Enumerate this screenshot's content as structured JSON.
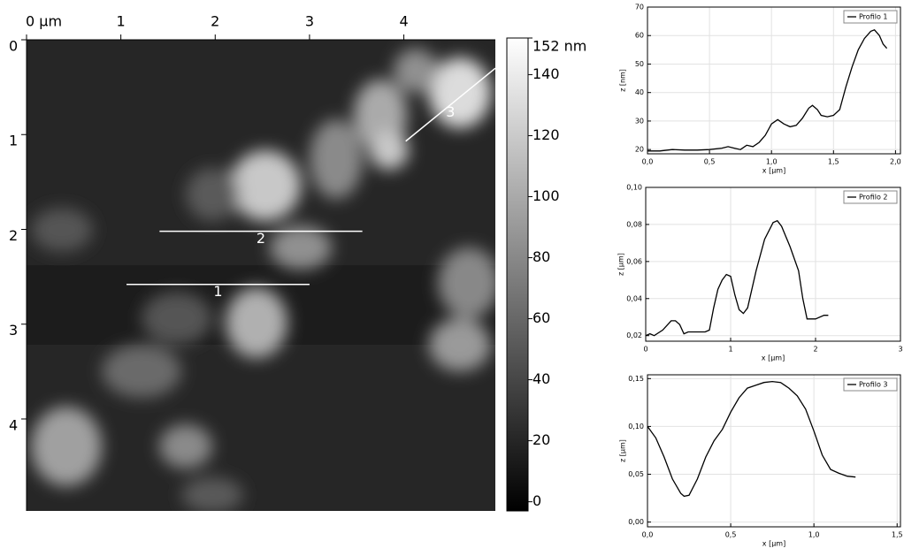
{
  "chart_data": [
    {
      "type": "image",
      "xlim": [
        0,
        4.97
      ],
      "ylim": [
        0,
        4.97
      ],
      "xticks": [
        {
          "value": 0,
          "label": "0 µm"
        },
        1,
        2,
        3,
        4
      ],
      "yticks": [
        0,
        1,
        2,
        3,
        4
      ],
      "colorbar": {
        "lim": [
          -3,
          152
        ],
        "ticks": [
          0,
          20,
          40,
          60,
          80,
          100,
          120,
          140,
          {
            "value": 152,
            "label": "152 nm"
          }
        ]
      },
      "profiles": [
        {
          "label": "1",
          "x": [
            1.06,
            3.0
          ],
          "y": [
            2.58,
            2.58
          ]
        },
        {
          "label": "2",
          "x": [
            1.41,
            3.56
          ],
          "y": [
            2.02,
            2.02
          ]
        },
        {
          "label": "3",
          "x": [
            4.02,
            4.97
          ],
          "y": [
            1.07,
            0.3
          ]
        }
      ]
    },
    {
      "type": "line",
      "xlabel": "x [µm]",
      "ylabel": "z [nm]",
      "grid": true,
      "legend": "upper right",
      "xlim": [
        0,
        2.04
      ],
      "ylim": [
        18.5,
        70
      ],
      "xticks": [
        {
          "value": 0,
          "label": "0,0"
        },
        {
          "value": 0.5,
          "label": "0,5"
        },
        {
          "value": 1,
          "label": "1,0"
        },
        {
          "value": 1.5,
          "label": "1,5"
        },
        {
          "value": 2,
          "label": "2,0"
        }
      ],
      "yticks": [
        20,
        30,
        40,
        50,
        60,
        70
      ],
      "x": [
        0,
        0.1,
        0.2,
        0.3,
        0.4,
        0.5,
        0.6,
        0.65,
        0.7,
        0.75,
        0.8,
        0.85,
        0.9,
        0.95,
        1.0,
        1.05,
        1.1,
        1.15,
        1.2,
        1.25,
        1.3,
        1.33,
        1.37,
        1.4,
        1.45,
        1.5,
        1.55,
        1.6,
        1.65,
        1.7,
        1.75,
        1.8,
        1.83,
        1.87,
        1.9,
        1.93
      ],
      "series": [
        {
          "name": "Profilo 1",
          "color": "#000000",
          "values": [
            19.5,
            19.5,
            20,
            19.8,
            19.8,
            20,
            20.5,
            21,
            20.5,
            20,
            21.5,
            21,
            22.5,
            25,
            29,
            30.5,
            29,
            28,
            28.5,
            31,
            34.5,
            35.5,
            34,
            32,
            31.5,
            32,
            34,
            42,
            49,
            55,
            59,
            61.5,
            62,
            60,
            57,
            55.5
          ]
        }
      ]
    },
    {
      "type": "line",
      "xlabel": "x [µm]",
      "ylabel": "z [µm]",
      "grid": true,
      "legend": "upper right",
      "xlim": [
        0,
        3
      ],
      "ylim": [
        0.017,
        0.1
      ],
      "xticks": [
        0,
        1,
        2,
        3
      ],
      "yticks": [
        {
          "value": 0.02,
          "label": "0,02"
        },
        {
          "value": 0.04,
          "label": "0,04"
        },
        {
          "value": 0.06,
          "label": "0,06"
        },
        {
          "value": 0.08,
          "label": "0,08"
        },
        {
          "value": 0.1,
          "label": "0,10"
        }
      ],
      "x": [
        0,
        0.05,
        0.1,
        0.2,
        0.3,
        0.35,
        0.4,
        0.45,
        0.5,
        0.6,
        0.7,
        0.75,
        0.8,
        0.85,
        0.9,
        0.95,
        1.0,
        1.05,
        1.1,
        1.15,
        1.2,
        1.3,
        1.4,
        1.5,
        1.55,
        1.6,
        1.7,
        1.8,
        1.85,
        1.9,
        2.0,
        2.1,
        2.15
      ],
      "series": [
        {
          "name": "Profilo 2",
          "color": "#000000",
          "values": [
            0.02,
            0.021,
            0.02,
            0.023,
            0.028,
            0.028,
            0.026,
            0.021,
            0.022,
            0.022,
            0.022,
            0.023,
            0.035,
            0.045,
            0.05,
            0.053,
            0.052,
            0.042,
            0.034,
            0.032,
            0.035,
            0.055,
            0.072,
            0.081,
            0.082,
            0.079,
            0.068,
            0.055,
            0.04,
            0.029,
            0.029,
            0.031,
            0.031
          ]
        }
      ]
    },
    {
      "type": "line",
      "xlabel": "x [µm]",
      "ylabel": "z [µm]",
      "grid": true,
      "legend": "upper right",
      "xlim": [
        0,
        1.52
      ],
      "ylim": [
        -0.005,
        0.154
      ],
      "xticks": [
        {
          "value": 0,
          "label": "0,0"
        },
        {
          "value": 0.5,
          "label": "0,5"
        },
        {
          "value": 1,
          "label": "1,0"
        },
        {
          "value": 1.5,
          "label": "1,5"
        }
      ],
      "yticks": [
        {
          "value": 0,
          "label": "0,00"
        },
        {
          "value": 0.05,
          "label": "0,05"
        },
        {
          "value": 0.1,
          "label": "0,10"
        },
        {
          "value": 0.15,
          "label": "0,15"
        }
      ],
      "x": [
        0,
        0.05,
        0.1,
        0.15,
        0.2,
        0.22,
        0.25,
        0.3,
        0.35,
        0.4,
        0.45,
        0.5,
        0.55,
        0.6,
        0.65,
        0.7,
        0.75,
        0.8,
        0.85,
        0.9,
        0.95,
        1.0,
        1.05,
        1.1,
        1.15,
        1.2,
        1.25
      ],
      "series": [
        {
          "name": "Profilo 3",
          "color": "#000000",
          "values": [
            0.1,
            0.088,
            0.068,
            0.045,
            0.03,
            0.027,
            0.028,
            0.045,
            0.068,
            0.085,
            0.097,
            0.115,
            0.13,
            0.14,
            0.143,
            0.146,
            0.147,
            0.146,
            0.14,
            0.132,
            0.118,
            0.095,
            0.07,
            0.055,
            0.051,
            0.048,
            0.047
          ]
        }
      ]
    }
  ]
}
